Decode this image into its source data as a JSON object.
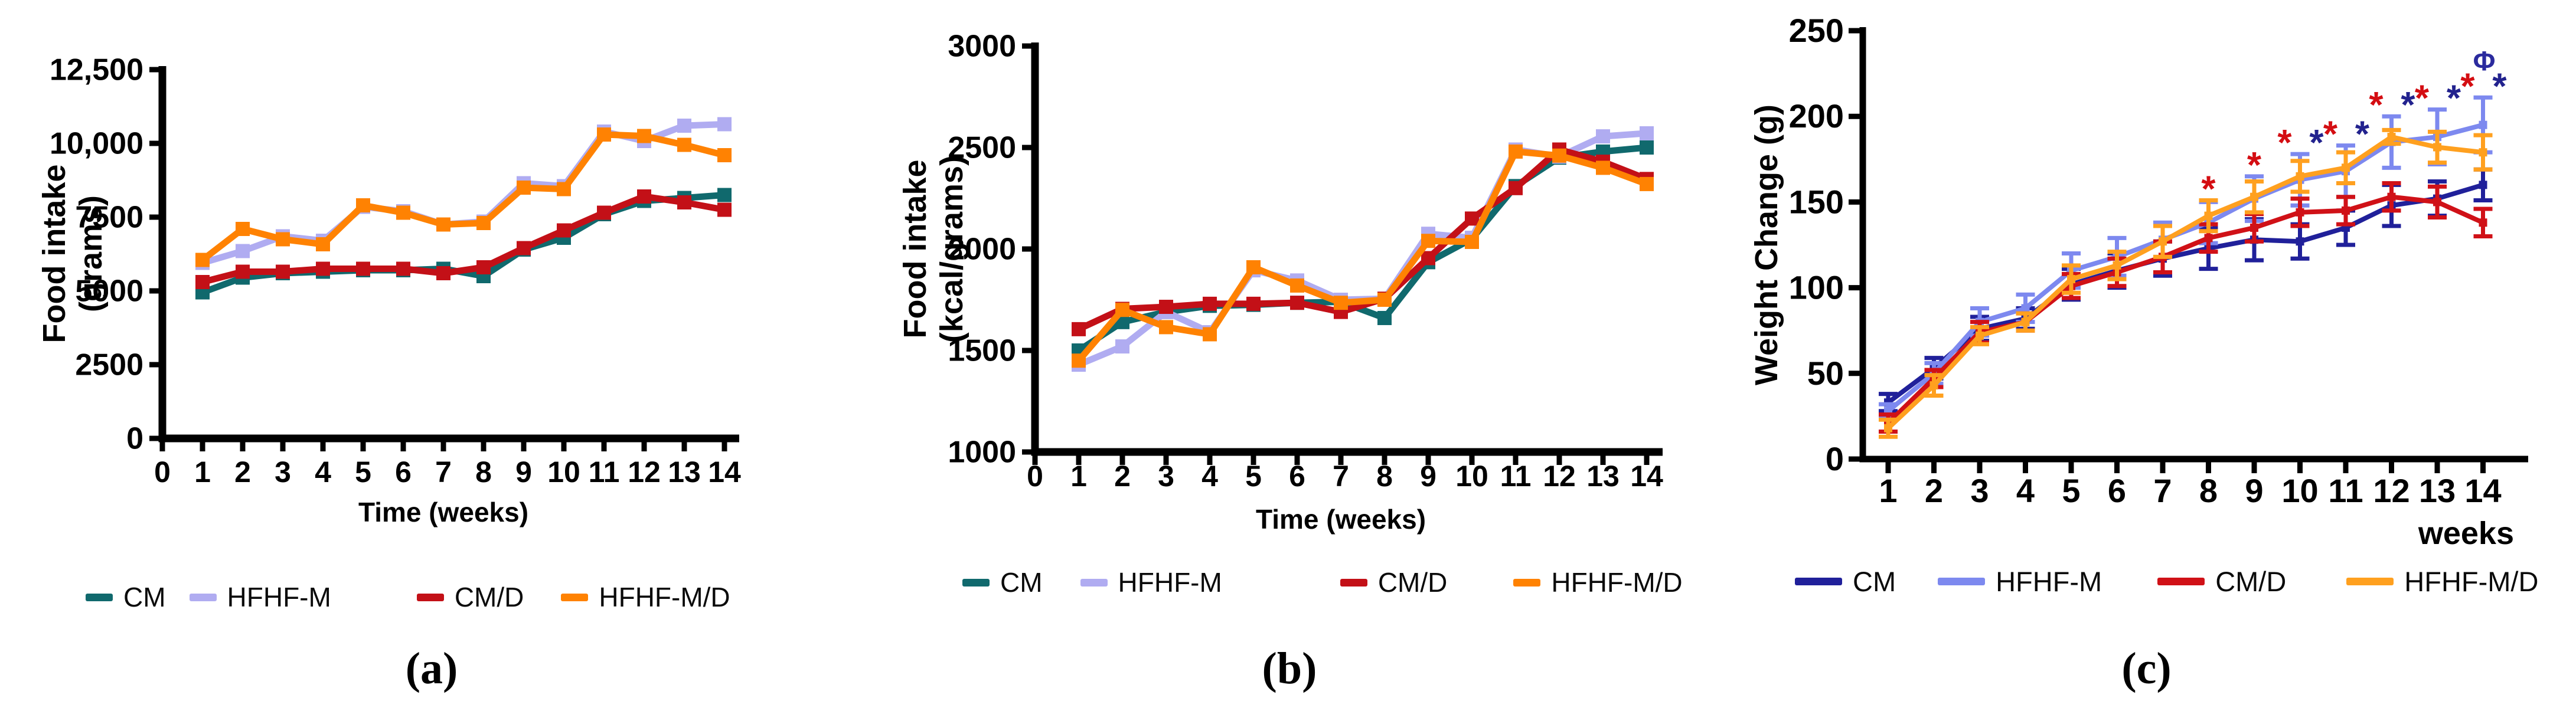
{
  "figure": {
    "description": "Three-panel line chart figure: food intake (grams), food intake (kcal/grams) and weight change (g) over 14 weeks for four diet groups",
    "background": "#ffffff",
    "text_color": "#000000"
  },
  "chart_data": [
    {
      "id": "a",
      "type": "line",
      "caption": "(a)",
      "xlabel": "Time (weeks)",
      "ylabel_lines": [
        "Food intake",
        "(grams)"
      ],
      "xlim": [
        0,
        14.4
      ],
      "ylim": [
        0,
        12500
      ],
      "grid": false,
      "legend_position": "bottom",
      "x": [
        1,
        2,
        3,
        4,
        5,
        6,
        7,
        8,
        9,
        10,
        11,
        12,
        13,
        14
      ],
      "xticks": [
        0,
        1,
        2,
        3,
        4,
        5,
        6,
        7,
        8,
        9,
        10,
        11,
        12,
        13,
        14
      ],
      "yticks": [
        {
          "v": 0,
          "label": "0"
        },
        {
          "v": 2500,
          "label": "2500"
        },
        {
          "v": 5000,
          "label": "5000"
        },
        {
          "v": 7500,
          "label": "7500"
        },
        {
          "v": 10000,
          "label": "10,000"
        },
        {
          "v": 12500,
          "label": "12,500"
        }
      ],
      "series": [
        {
          "name": "CM",
          "color": "#10696d",
          "values": [
            4950,
            5450,
            5600,
            5650,
            5700,
            5700,
            5750,
            5500,
            6400,
            6800,
            7600,
            8050,
            8150,
            8250
          ]
        },
        {
          "name": "HFHF-M",
          "color": "#b0acf1",
          "values": [
            5950,
            6350,
            6850,
            6700,
            7850,
            7700,
            7250,
            7350,
            8650,
            8550,
            10400,
            10080,
            10600,
            10650
          ]
        },
        {
          "name": "CM/D",
          "color": "#c31017",
          "values": [
            5300,
            5650,
            5650,
            5750,
            5750,
            5750,
            5600,
            5800,
            6450,
            7050,
            7650,
            8200,
            8000,
            7750
          ]
        },
        {
          "name": "HFHF-M/D",
          "color": "#ff8202",
          "values": [
            6050,
            7100,
            6750,
            6580,
            7900,
            7650,
            7250,
            7300,
            8500,
            8450,
            10300,
            10250,
            9950,
            9600
          ]
        }
      ]
    },
    {
      "id": "b",
      "type": "line",
      "caption": "(b)",
      "xlabel": "Time (weeks)",
      "ylabel_lines": [
        "Food intake",
        "(kcal/grams)"
      ],
      "xlim": [
        0,
        14.4
      ],
      "ylim": [
        1000,
        3000
      ],
      "grid": false,
      "legend_position": "bottom",
      "x": [
        1,
        2,
        3,
        4,
        5,
        6,
        7,
        8,
        9,
        10,
        11,
        12,
        13,
        14
      ],
      "xticks": [
        0,
        1,
        2,
        3,
        4,
        5,
        6,
        7,
        8,
        9,
        10,
        11,
        12,
        13,
        14
      ],
      "yticks": [
        {
          "v": 1000,
          "label": "1000"
        },
        {
          "v": 1500,
          "label": "1500"
        },
        {
          "v": 2000,
          "label": "2000"
        },
        {
          "v": 2500,
          "label": "2500"
        },
        {
          "v": 3000,
          "label": "3000"
        }
      ],
      "series": [
        {
          "name": "CM",
          "color": "#10696d",
          "values": [
            1500,
            1640,
            1690,
            1720,
            1725,
            1735,
            1740,
            1660,
            1935,
            2050,
            2310,
            2450,
            2480,
            2500
          ]
        },
        {
          "name": "HFHF-M",
          "color": "#b0acf1",
          "values": [
            1430,
            1520,
            1690,
            1590,
            1895,
            1845,
            1750,
            1755,
            2075,
            2055,
            2490,
            2455,
            2555,
            2570
          ]
        },
        {
          "name": "CM/D",
          "color": "#c31017",
          "values": [
            1605,
            1705,
            1715,
            1730,
            1730,
            1735,
            1690,
            1755,
            1955,
            2150,
            2300,
            2490,
            2430,
            2345
          ]
        },
        {
          "name": "HFHF-M/D",
          "color": "#ff8202",
          "values": [
            1450,
            1700,
            1615,
            1580,
            1910,
            1820,
            1735,
            1750,
            2040,
            2035,
            2480,
            2460,
            2400,
            2320
          ]
        }
      ]
    },
    {
      "id": "c",
      "type": "line",
      "caption": "(c)",
      "xlabel": "weeks",
      "xlabel_align": "end",
      "ylabel_lines": [
        "Weight Change (g)"
      ],
      "xlim": [
        0.3,
        15
      ],
      "ylim": [
        0,
        250
      ],
      "grid": false,
      "legend_position": "bottom",
      "error_bars": true,
      "x": [
        1,
        2,
        3,
        4,
        5,
        6,
        7,
        8,
        9,
        10,
        11,
        12,
        13,
        14
      ],
      "xticks": [
        1,
        2,
        3,
        4,
        5,
        6,
        7,
        8,
        9,
        10,
        11,
        12,
        13,
        14
      ],
      "yticks": [
        {
          "v": 0,
          "label": "0"
        },
        {
          "v": 50,
          "label": "50"
        },
        {
          "v": 100,
          "label": "100"
        },
        {
          "v": 150,
          "label": "150"
        },
        {
          "v": 200,
          "label": "200"
        },
        {
          "v": 250,
          "label": "250"
        }
      ],
      "series": [
        {
          "name": "CM",
          "color": "#20209a",
          "values": [
            33,
            53,
            76,
            82,
            102,
            110,
            117,
            123,
            128,
            127,
            135,
            148,
            152,
            160
          ],
          "err": [
            5,
            6,
            7,
            6,
            9,
            10,
            10,
            12,
            12,
            10,
            10,
            12,
            10,
            9
          ]
        },
        {
          "name": "HFHF-M",
          "color": "#7d89ef",
          "values": [
            28,
            50,
            80,
            88,
            110,
            118,
            128,
            138,
            152,
            163,
            168,
            185,
            188,
            195
          ],
          "err": [
            4,
            6,
            8,
            8,
            10,
            11,
            10,
            12,
            13,
            15,
            15,
            15,
            16,
            16
          ]
        },
        {
          "name": "CM/D",
          "color": "#d01117",
          "values": [
            21,
            47,
            74,
            80,
            101,
            109,
            118,
            129,
            135,
            144,
            145,
            153,
            150,
            138
          ],
          "err": [
            5,
            5,
            6,
            5,
            7,
            8,
            9,
            8,
            8,
            8,
            8,
            8,
            9,
            8
          ]
        },
        {
          "name": "HFHF-M/D",
          "color": "#ffa01f",
          "values": [
            18,
            43,
            72,
            80,
            105,
            113,
            127,
            142,
            153,
            165,
            170,
            188,
            182,
            179
          ],
          "err": [
            5,
            6,
            5,
            5,
            8,
            8,
            9,
            9,
            9,
            9,
            9,
            4,
            9,
            10
          ]
        }
      ],
      "annotations": [
        {
          "week": 8,
          "stars": [
            "#d40d12"
          ]
        },
        {
          "week": 9,
          "stars": [
            "#d40d12"
          ]
        },
        {
          "week": 10,
          "stars": [
            "#d40d12",
            "#22228e"
          ]
        },
        {
          "week": 11,
          "stars": [
            "#d40d12",
            "#22228e"
          ]
        },
        {
          "week": 12,
          "stars": [
            "#d40d12",
            "#22228e"
          ]
        },
        {
          "week": 13,
          "stars": [
            "#d40d12",
            "#22228e"
          ]
        },
        {
          "week": 14,
          "stars": [
            "#d40d12",
            "#22228e"
          ],
          "extra": {
            "char": "Φ",
            "color": "#2b2b9e"
          }
        }
      ]
    }
  ]
}
